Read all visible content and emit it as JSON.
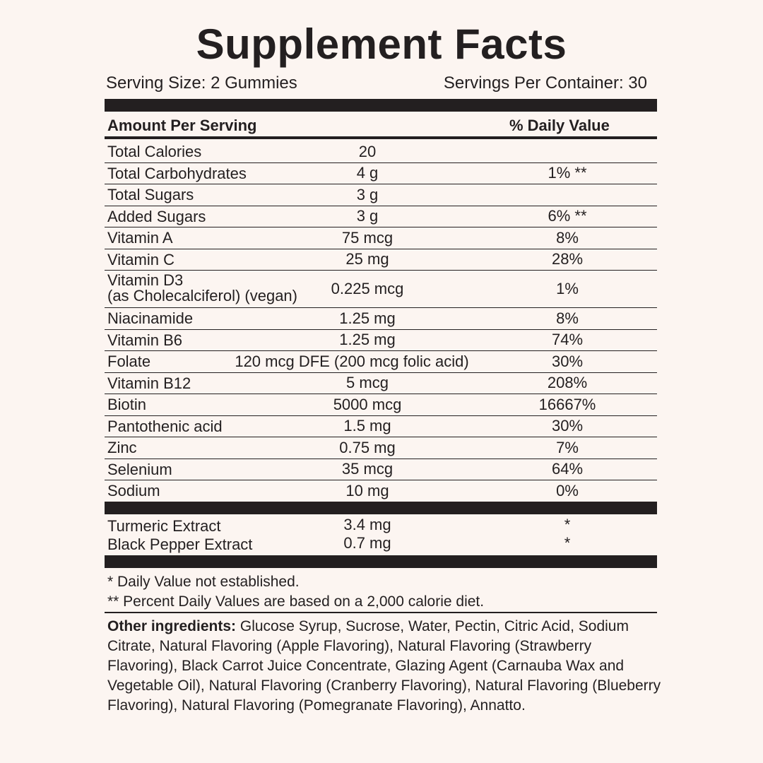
{
  "title": "Supplement Facts",
  "serving_size": "Serving Size: 2 Gummies",
  "servings_per_container": "Servings Per Container: 30",
  "header": {
    "amount": "Amount Per Serving",
    "dv": "% Daily Value"
  },
  "rows": [
    {
      "name": "Total Calories",
      "amount": "20",
      "dv": ""
    },
    {
      "name": "Total Carbohydrates",
      "amount": "4 g",
      "dv": "1% **"
    },
    {
      "name": "Total Sugars",
      "amount": "3 g",
      "dv": ""
    },
    {
      "name": "Added Sugars",
      "amount": "3 g",
      "dv": "6% **"
    },
    {
      "name": "Vitamin A",
      "amount": "75 mcg",
      "dv": "8%"
    },
    {
      "name": "Vitamin C",
      "amount": "25 mg",
      "dv": "28%"
    },
    {
      "name": "Vitamin D3",
      "name2": "(as Cholecalciferol) (vegan)",
      "amount": "0.225 mcg",
      "dv": "1%"
    },
    {
      "name": "Niacinamide",
      "amount": "1.25 mg",
      "dv": "8%"
    },
    {
      "name": "Vitamin B6",
      "amount": "1.25 mg",
      "dv": "74%"
    },
    {
      "name": "Folate",
      "amount": "120 mcg DFE (200 mcg folic acid)",
      "dv": "30%"
    },
    {
      "name": "Vitamin B12",
      "amount": "5 mcg",
      "dv": "208%"
    },
    {
      "name": "Biotin",
      "amount": "5000 mcg",
      "dv": "16667%"
    },
    {
      "name": "Pantothenic acid",
      "amount": "1.5 mg",
      "dv": "30%"
    },
    {
      "name": "Zinc",
      "amount": "0.75 mg",
      "dv": "7%"
    },
    {
      "name": "Selenium",
      "amount": "35 mcg",
      "dv": "64%"
    },
    {
      "name": "Sodium",
      "amount": "10 mg",
      "dv": "0%"
    }
  ],
  "extras": [
    {
      "name": "Turmeric Extract",
      "amount": "3.4 mg",
      "dv": "*"
    },
    {
      "name": "Black Pepper Extract",
      "amount": "0.7 mg",
      "dv": "*"
    }
  ],
  "footnotes": [
    "* Daily Value not established.",
    "** Percent Daily Values are based on a 2,000 calorie diet."
  ],
  "other": {
    "label": "Other ingredients:",
    "text": " Glucose Syrup, Sucrose, Water, Pectin, Citric Acid, Sodium Citrate, Natural Flavoring (Apple Flavoring), Natural Flavoring (Strawberry Flavoring), Black Carrot Juice Concentrate, Glazing Agent (Carnauba Wax and Vegetable Oil), Natural Flavoring (Cranberry Flavoring), Natural Flavoring (Blueberry Flavoring), Natural Flavoring (Pomegranate Flavoring), Annatto."
  }
}
